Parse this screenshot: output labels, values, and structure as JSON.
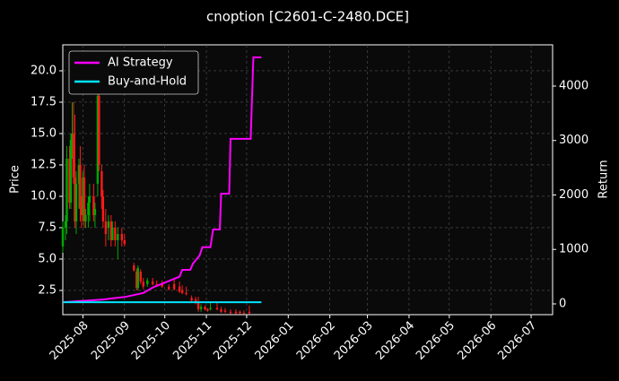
{
  "chart_data": {
    "type": "candlestick",
    "title": "cnoption [C2601-C-2480.DCE]",
    "ylabel": "Price",
    "y2label": "Return",
    "xlim": [
      16,
      381
    ],
    "xticks": [
      {
        "value": 31,
        "label": "2025-08"
      },
      {
        "value": 62,
        "label": "2025-09"
      },
      {
        "value": 92,
        "label": "2025-10"
      },
      {
        "value": 123,
        "label": "2025-11"
      },
      {
        "value": 153,
        "label": "2025-12"
      },
      {
        "value": 184,
        "label": "2026-01"
      },
      {
        "value": 215,
        "label": "2026-02"
      },
      {
        "value": 243,
        "label": "2026-03"
      },
      {
        "value": 274,
        "label": "2026-04"
      },
      {
        "value": 304,
        "label": "2026-05"
      },
      {
        "value": 335,
        "label": "2026-06"
      },
      {
        "value": 365,
        "label": "2026-07"
      }
    ],
    "ylim": [
      0.57,
      22.07
    ],
    "yticks": [
      2.5,
      {
        "value": 5,
        "label": "5.0"
      },
      7.5,
      {
        "value": 10,
        "label": "10.0"
      },
      12.5,
      {
        "value": 15,
        "label": "15.0"
      },
      17.5,
      {
        "value": 20,
        "label": "20.0"
      }
    ],
    "y2lim": [
      -198,
      4757
    ],
    "y2ticks": [
      0,
      1000,
      2000,
      3000,
      4000
    ],
    "grid": true,
    "legend": "upper left",
    "up_color": "#00aa00",
    "down_color": "#ff1a1a",
    "candles": {
      "x": [
        16,
        18,
        19,
        21,
        22,
        23,
        24,
        25,
        26,
        28,
        29,
        30,
        31,
        32,
        33,
        35,
        36,
        39,
        40,
        42,
        43,
        45,
        46,
        48,
        50,
        52,
        53,
        55,
        57,
        60,
        62,
        69,
        71,
        72,
        74,
        76,
        79,
        83,
        86,
        90,
        95,
        99,
        103,
        105,
        108,
        112,
        115,
        117,
        119,
        122,
        124,
        126,
        131,
        134,
        137,
        141,
        145,
        148,
        151,
        155
      ],
      "open": [
        6,
        7.5,
        8,
        13,
        9.5,
        14.5,
        15,
        11.5,
        8,
        11,
        12.5,
        9,
        8.5,
        11.5,
        8,
        8.5,
        9.5,
        10,
        8.5,
        11,
        18,
        12,
        10,
        8,
        7.5,
        8,
        6.5,
        7.5,
        6.5,
        7,
        6.5,
        4.5,
        4,
        2.7,
        4,
        3.2,
        3,
        3.2,
        3,
        3,
        2.8,
        3,
        2.8,
        2.5,
        2.3,
        1.9,
        1.8,
        1.6,
        1,
        1.2,
        1,
        1,
        1.1,
        1,
        0.9,
        0.8,
        0.8,
        0.8,
        0.7,
        0.8
      ],
      "high": [
        8,
        8.5,
        14,
        14,
        15,
        17.5,
        17.5,
        16.5,
        12,
        13,
        14,
        10,
        12,
        12.5,
        9,
        10,
        11,
        11,
        9.5,
        20,
        19,
        12.5,
        10.5,
        9,
        8.5,
        8.5,
        8,
        8,
        7.5,
        7.5,
        7,
        4.7,
        4.2,
        4.5,
        4.2,
        3.5,
        3.5,
        3.5,
        3.3,
        3.3,
        3,
        3.5,
        3.2,
        2.9,
        2.8,
        2.1,
        2,
        2,
        1.4,
        1.3,
        1.1,
        1.6,
        1.5,
        1.2,
        1.1,
        1,
        1,
        0.9,
        0.9,
        1.3
      ],
      "low": [
        5.5,
        6.5,
        7,
        9,
        9,
        13,
        11,
        7.5,
        7,
        9,
        8,
        7.5,
        8,
        7.5,
        7.5,
        7.5,
        8,
        8,
        7.5,
        10,
        12,
        9,
        7.5,
        6,
        6.5,
        6,
        6.5,
        6,
        5,
        6,
        6,
        4,
        2.5,
        2.5,
        3,
        2.6,
        2.8,
        2.9,
        2.8,
        2.7,
        2.5,
        2.5,
        2.3,
        2.2,
        2.1,
        1.6,
        1.4,
        0.8,
        0.8,
        0.9,
        0.8,
        0.9,
        0.9,
        0.7,
        0.7,
        0.6,
        0.6,
        0.6,
        0.6,
        0.6
      ],
      "close": [
        7.5,
        8,
        13,
        9.5,
        14.5,
        15,
        11.5,
        8,
        11,
        12.5,
        9,
        8.5,
        11.5,
        8,
        8.5,
        9.5,
        10,
        8.5,
        9,
        18,
        12.5,
        10,
        8,
        7,
        8,
        6.5,
        7.5,
        6.5,
        7,
        6.5,
        6.2,
        4.1,
        2.7,
        4.3,
        3.2,
        2.8,
        3.3,
        3,
        2.9,
        2.8,
        2.6,
        2.6,
        2.4,
        2.3,
        2.2,
        1.7,
        1.5,
        1,
        1.2,
        1,
        0.9,
        1.1,
        1,
        0.8,
        0.8,
        0.7,
        0.7,
        0.7,
        0.65,
        0.7
      ]
    },
    "series": [
      {
        "name": "AI Strategy",
        "color": "#ff00ff",
        "axis": "y2",
        "x": [
          16,
          46,
          63,
          76,
          83,
          93,
          103,
          105,
          111,
          113,
          118,
          120,
          126,
          128,
          133,
          134,
          140,
          141,
          156,
          158,
          164
        ],
        "values": [
          30,
          80,
          130,
          200,
          300,
          400,
          500,
          625,
          625,
          740,
          890,
          1040,
          1040,
          1366,
          1366,
          2025,
          2025,
          3030,
          3030,
          4527,
          4527
        ]
      },
      {
        "name": "Buy-and-Hold",
        "color": "#00e5ff",
        "axis": "y2",
        "x": [
          16,
          164
        ],
        "values": [
          30,
          30
        ]
      }
    ]
  }
}
